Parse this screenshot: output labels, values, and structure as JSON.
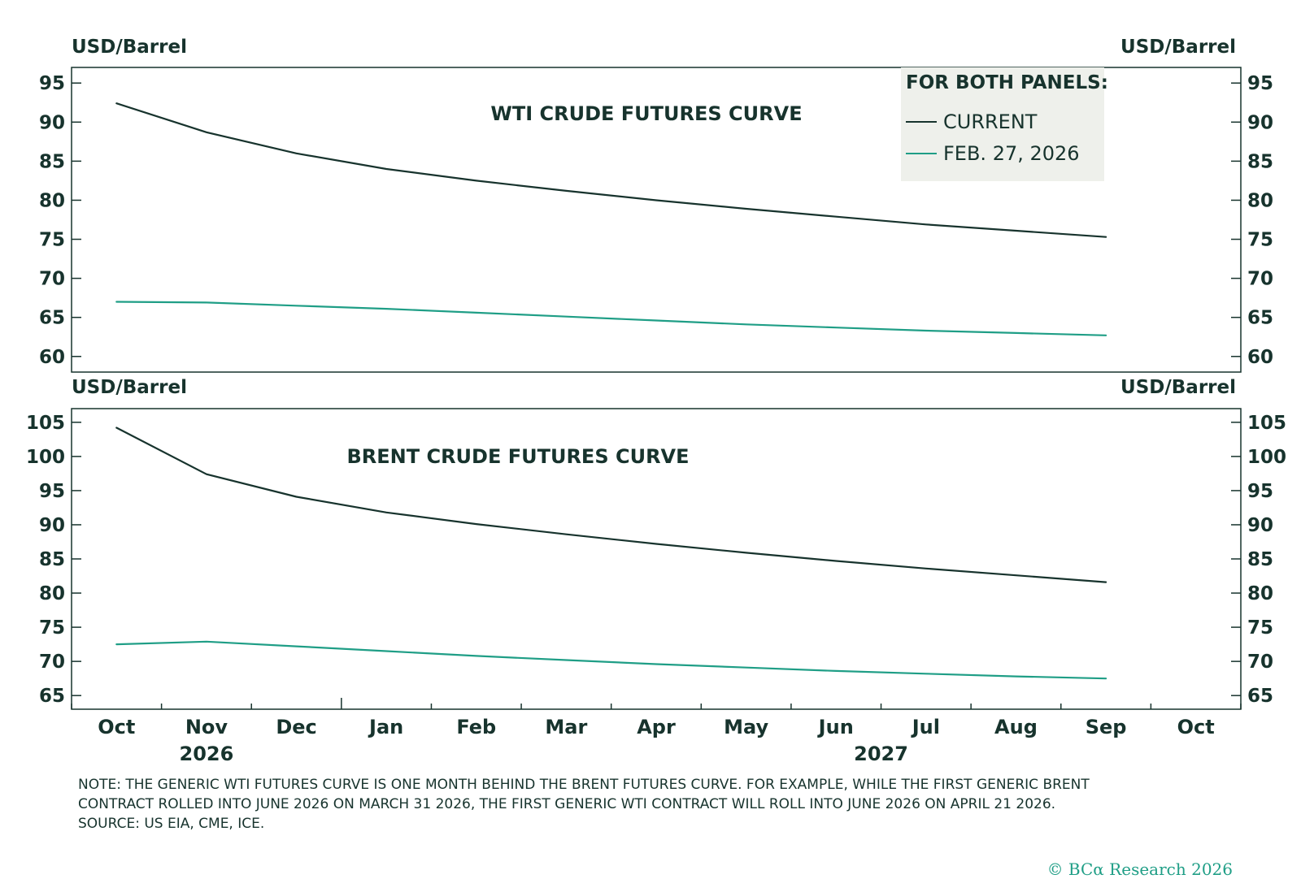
{
  "chart_data": [
    {
      "type": "line",
      "title": "WTI CRUDE FUTURES CURVE",
      "ylabel_left": "USD/Barrel",
      "ylabel_right": "USD/Barrel",
      "ylim": [
        58,
        97
      ],
      "yticks": [
        60,
        65,
        70,
        75,
        80,
        85,
        90,
        95
      ],
      "x": [
        "Oct 2026",
        "Nov 2026",
        "Dec 2026",
        "Jan 2027",
        "Feb 2027",
        "Mar 2027",
        "Apr 2027",
        "May 2027",
        "Jun 2027",
        "Jul 2027",
        "Aug 2027",
        "Sep 2027"
      ],
      "series": [
        {
          "name": "CURRENT",
          "color": "#17332d",
          "values": [
            92.4,
            88.7,
            86.0,
            84.0,
            82.5,
            81.2,
            80.0,
            78.9,
            77.9,
            76.9,
            76.1,
            75.3
          ]
        },
        {
          "name": "FEB. 27, 2026",
          "color": "#1f9e86",
          "values": [
            67.0,
            66.9,
            66.5,
            66.1,
            65.6,
            65.1,
            64.6,
            64.1,
            63.7,
            63.3,
            63.0,
            62.7
          ]
        }
      ]
    },
    {
      "type": "line",
      "title": "BRENT CRUDE FUTURES CURVE",
      "ylabel_left": "USD/Barrel",
      "ylabel_right": "USD/Barrel",
      "ylim": [
        63,
        107
      ],
      "yticks": [
        65,
        70,
        75,
        80,
        85,
        90,
        95,
        100,
        105
      ],
      "x": [
        "Oct 2026",
        "Nov 2026",
        "Dec 2026",
        "Jan 2027",
        "Feb 2027",
        "Mar 2027",
        "Apr 2027",
        "May 2027",
        "Jun 2027",
        "Jul 2027",
        "Aug 2027",
        "Sep 2027"
      ],
      "series": [
        {
          "name": "CURRENT",
          "color": "#17332d",
          "values": [
            104.2,
            97.4,
            94.1,
            91.8,
            90.1,
            88.6,
            87.2,
            85.9,
            84.7,
            83.6,
            82.6,
            81.6
          ]
        },
        {
          "name": "FEB. 27, 2026",
          "color": "#1f9e86",
          "values": [
            72.5,
            72.9,
            72.2,
            71.5,
            70.8,
            70.2,
            69.6,
            69.1,
            68.6,
            68.2,
            67.8,
            67.5
          ]
        }
      ]
    }
  ],
  "xaxis": {
    "month_labels": [
      "Oct",
      "Nov",
      "Dec",
      "Jan",
      "Feb",
      "Mar",
      "Apr",
      "May",
      "Jun",
      "Jul",
      "Aug",
      "Sep",
      "Oct"
    ],
    "year_labels": [
      "2026",
      "2027"
    ]
  },
  "legend": {
    "title": "FOR BOTH PANELS:",
    "items": [
      {
        "label": "CURRENT",
        "color": "#17332d"
      },
      {
        "label": "FEB. 27, 2026",
        "color": "#1f9e86"
      }
    ]
  },
  "note": {
    "line1": "NOTE: THE GENERIC WTI FUTURES CURVE IS ONE MONTH BEHIND THE BRENT FUTURES CURVE. FOR EXAMPLE, WHILE THE FIRST GENERIC BRENT",
    "line2": "CONTRACT ROLLED INTO JUNE 2026 ON MARCH 31 2026, THE FIRST GENERIC WTI CONTRACT WILL ROLL INTO JUNE 2026 ON APRIL 21 2026.",
    "source": "SOURCE: US EIA, CME, ICE."
  },
  "copyright": "© BCα Research 2026"
}
